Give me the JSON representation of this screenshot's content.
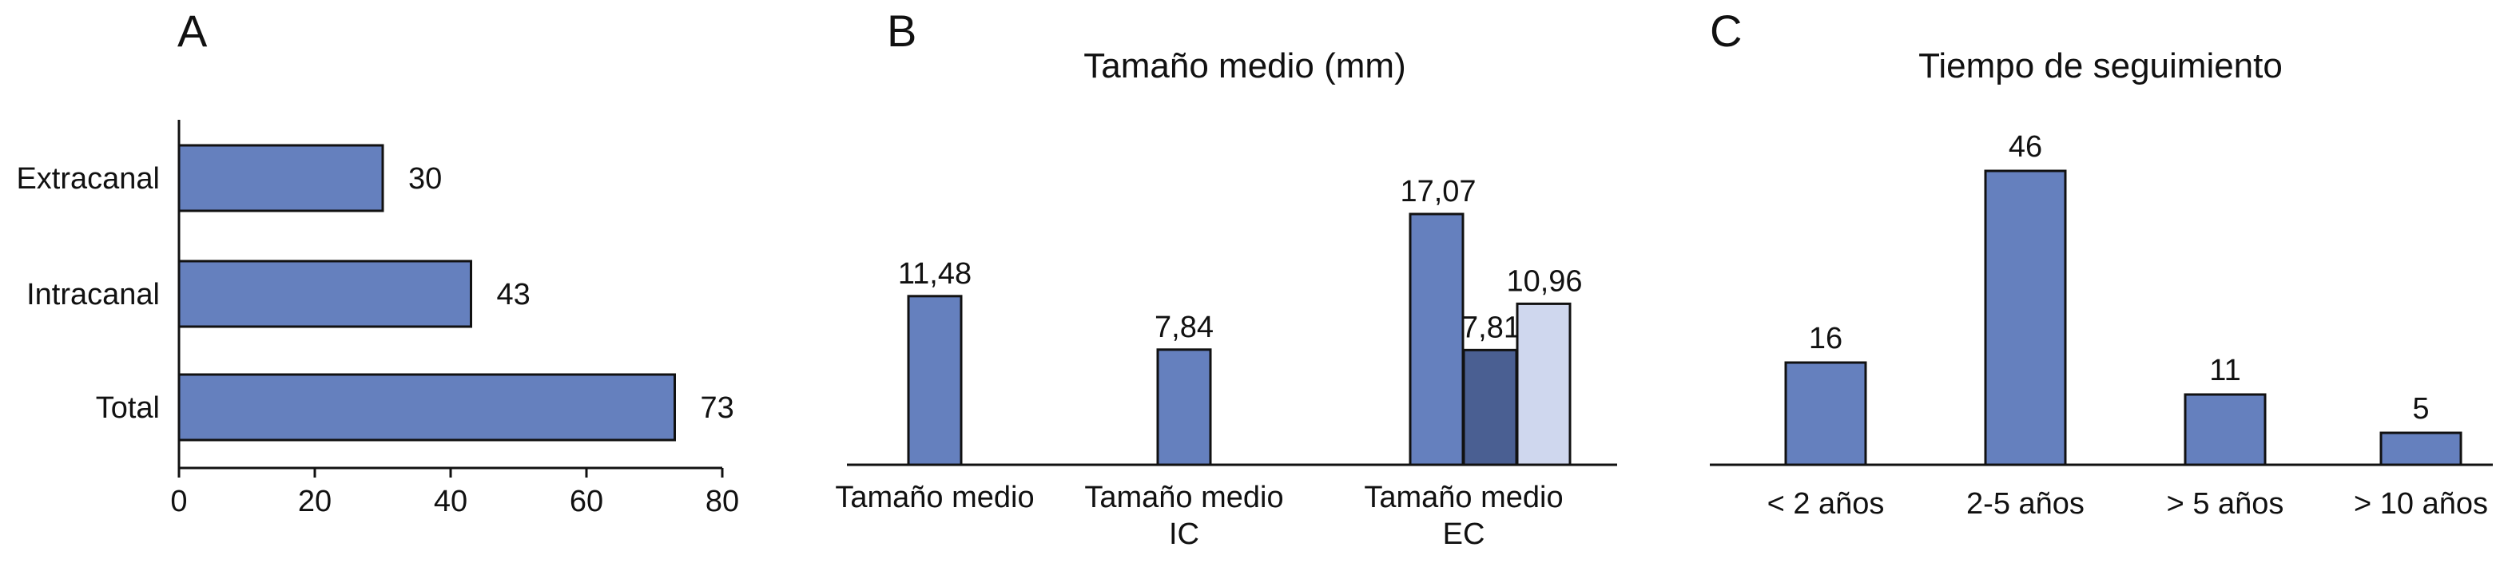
{
  "colors": {
    "bar": "#6580be",
    "bar_dark": "#4a5f92",
    "bar_light": "#cfd7ee",
    "stroke": "#111111"
  },
  "chart_data": [
    {
      "panel": "A",
      "type": "bar",
      "orientation": "horizontal",
      "title": "",
      "categories": [
        "Extracanal",
        "Intracanal",
        "Total"
      ],
      "values": [
        30,
        43,
        73
      ],
      "data_labels": [
        "30",
        "43",
        "73"
      ],
      "xlim": [
        0,
        80
      ],
      "xticks": [
        0,
        20,
        40,
        60,
        80
      ],
      "grid": false,
      "legend": "none"
    },
    {
      "panel": "B",
      "type": "bar",
      "title": "Tamaño medio (mm)",
      "categories": [
        "Tamaño medio",
        "Tamaño medio\nIC",
        "Tamaño medio\nEC"
      ],
      "series": [
        {
          "values": [
            11.48,
            7.84,
            17.07
          ],
          "data_labels": [
            "11,48",
            "7,84",
            "17,07"
          ]
        },
        {
          "values": [
            null,
            null,
            7.81
          ],
          "data_labels": [
            "",
            "",
            "7,81"
          ]
        },
        {
          "values": [
            null,
            null,
            10.96
          ],
          "data_labels": [
            "",
            "",
            "10,96"
          ]
        }
      ],
      "ylim": [
        0,
        18
      ],
      "grid": false,
      "legend": "none"
    },
    {
      "panel": "C",
      "type": "bar",
      "title": "Tiempo de seguimiento",
      "categories": [
        "< 2 años",
        "2-5 años",
        "> 5 años",
        "> 10 años"
      ],
      "values": [
        16,
        46,
        11,
        5
      ],
      "data_labels": [
        "16",
        "46",
        "11",
        "5"
      ],
      "ylim": [
        0,
        48
      ],
      "grid": false,
      "legend": "none"
    }
  ]
}
